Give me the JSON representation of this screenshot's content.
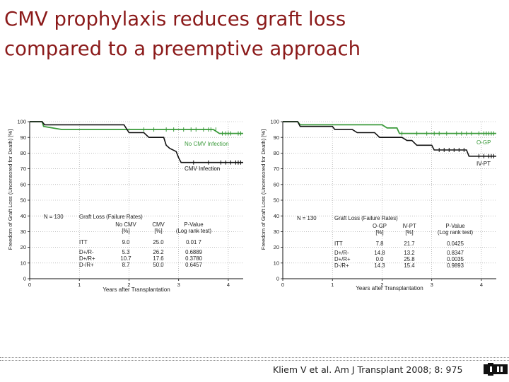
{
  "slide": {
    "title_line1": "CMV prophylaxis reduces graft loss",
    "title_line2": "compared to a preemptive approach",
    "citation": "Kliem V et al. Am J Transplant 2008; 8: 975",
    "accent_color": "#8b1a1a"
  },
  "chart_data": [
    {
      "type": "line",
      "subtype": "kaplan-meier",
      "ylabel": "Freedom of Graft Loss (Uncensored for Death) [%]",
      "xlabel": "Years after Transplantation",
      "xlim": [
        0,
        4.3
      ],
      "ylim": [
        0,
        100
      ],
      "x_ticks": [
        "0",
        "1",
        "2",
        "3",
        "4"
      ],
      "y_ticks": [
        "0",
        "10",
        "20",
        "30",
        "40",
        "50",
        "60",
        "70",
        "80",
        "90",
        "100"
      ],
      "series": [
        {
          "name": "No CMV Infection",
          "color": "#3a9a3a",
          "points": [
            [
              0,
              100
            ],
            [
              0.25,
              100
            ],
            [
              0.28,
              97
            ],
            [
              0.65,
              95
            ],
            [
              2.2,
              95
            ],
            [
              2.9,
              95
            ],
            [
              3.7,
              95
            ],
            [
              3.82,
              92.5
            ],
            [
              4.3,
              92.5
            ]
          ],
          "censor_x": [
            2.3,
            2.5,
            2.75,
            2.9,
            3.1,
            3.25,
            3.35,
            3.5,
            3.6,
            3.65,
            3.75,
            3.88,
            3.95,
            4.0,
            4.05,
            4.2,
            4.25
          ]
        },
        {
          "name": "CMV Infection",
          "color": "#111111",
          "points": [
            [
              0,
              100
            ],
            [
              0.25,
              100
            ],
            [
              0.3,
              98
            ],
            [
              1.9,
              98
            ],
            [
              2.0,
              93
            ],
            [
              2.3,
              93
            ],
            [
              2.4,
              90
            ],
            [
              2.7,
              90
            ],
            [
              2.75,
              85
            ],
            [
              2.82,
              83
            ],
            [
              2.95,
              81
            ],
            [
              3.0,
              77
            ],
            [
              3.05,
              74
            ],
            [
              4.3,
              74
            ]
          ],
          "censor_x": [
            3.3,
            3.6,
            3.85,
            3.95,
            4.05,
            4.15,
            4.2,
            4.25
          ]
        }
      ],
      "annotations": {
        "n": "N = 130",
        "table_title": "Graft Loss (Failure Rates)",
        "col1": "No CMV",
        "col2": "CMV",
        "col3": "P-Value",
        "unit1": "[%]",
        "unit2": "[%]",
        "unit3": "(Log rank test)"
      },
      "table_rows": [
        {
          "label": "ITT",
          "v1": "9.0",
          "v2": "25.0",
          "p": "0.01 7"
        },
        {
          "label": "D+/R-",
          "v1": "5.3",
          "v2": "26.2",
          "p": "0.6889"
        },
        {
          "label": "D+/R+",
          "v1": "10.7",
          "v2": "17.6",
          "p": "0.3780"
        },
        {
          "label": "D-/R+",
          "v1": "8.7",
          "v2": "50.0",
          "p": "0.6457"
        }
      ]
    },
    {
      "type": "line",
      "subtype": "kaplan-meier",
      "ylabel": "Freedom of Graft Loss (Uncensored for Death) [%]",
      "xlabel": "Years after Transplantation",
      "xlim": [
        0,
        4.3
      ],
      "ylim": [
        0,
        100
      ],
      "x_ticks": [
        "0",
        "1",
        "2",
        "3",
        "4"
      ],
      "y_ticks": [
        "0",
        "10",
        "20",
        "30",
        "40",
        "50",
        "60",
        "70",
        "80",
        "90",
        "100"
      ],
      "series": [
        {
          "name": "O-GP",
          "color": "#3a9a3a",
          "points": [
            [
              0,
              100
            ],
            [
              0.3,
              100
            ],
            [
              0.35,
              98
            ],
            [
              2.0,
              98
            ],
            [
              2.1,
              96
            ],
            [
              2.3,
              96
            ],
            [
              2.35,
              92.5
            ],
            [
              4.3,
              92.5
            ]
          ],
          "censor_x": [
            2.4,
            2.7,
            2.9,
            3.05,
            3.15,
            3.3,
            3.5,
            3.6,
            3.7,
            3.8,
            3.95,
            4.05,
            4.1,
            4.15,
            4.2,
            4.25
          ]
        },
        {
          "name": "IV-PT",
          "color": "#111111",
          "points": [
            [
              0,
              100
            ],
            [
              0.3,
              100
            ],
            [
              0.35,
              97
            ],
            [
              1.0,
              97
            ],
            [
              1.05,
              95
            ],
            [
              1.4,
              95
            ],
            [
              1.5,
              93
            ],
            [
              1.85,
              93
            ],
            [
              1.95,
              90
            ],
            [
              2.4,
              90
            ],
            [
              2.5,
              88
            ],
            [
              2.6,
              88
            ],
            [
              2.7,
              85
            ],
            [
              3.0,
              85
            ],
            [
              3.05,
              82
            ],
            [
              3.4,
              82
            ],
            [
              3.7,
              82
            ],
            [
              3.75,
              78
            ],
            [
              4.3,
              78
            ]
          ],
          "censor_x": [
            3.15,
            3.25,
            3.35,
            3.45,
            3.55,
            3.65,
            3.95,
            4.05,
            4.15,
            4.2,
            4.25
          ]
        }
      ],
      "annotations": {
        "n": "N = 130",
        "table_title": "Graft Loss (Failure Rates)",
        "col1": "O-GP",
        "col2": "IV-PT",
        "col3": "P-Value",
        "unit1": "[%]",
        "unit2": "[%]",
        "unit3": "(Log rank test)"
      },
      "table_rows": [
        {
          "label": "ITT",
          "v1": "7.8",
          "v2": "21.7",
          "p": "0.0425"
        },
        {
          "label": "D+/R-",
          "v1": "14.8",
          "v2": "13.2",
          "p": "0.8347"
        },
        {
          "label": "D+/R+",
          "v1": "0.0",
          "v2": "25.8",
          "p": "0.0035"
        },
        {
          "label": "D-/R+",
          "v1": "14.3",
          "v2": "15.4",
          "p": "0.9893"
        }
      ]
    }
  ]
}
